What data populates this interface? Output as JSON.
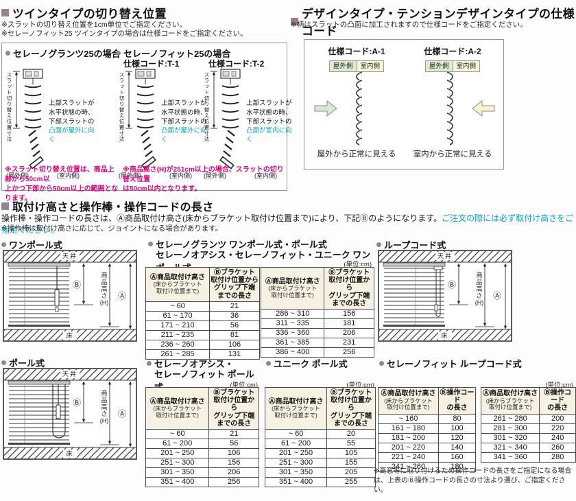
{
  "colors": {
    "accent_mauve": "#9a8191",
    "note_magenta": "#e6007e",
    "highlight_cyan": "#00a5cc",
    "table_header_bg": "#f6f1e3",
    "outdoor_label_bg": "#dcead0",
    "indoor_label_bg": "#faf6d8",
    "arrow_green": "#d5e9d4",
    "arrow_yellow": "#f8f4cc"
  },
  "twin": {
    "title": "ツインタイプの切り替え位置",
    "note1": "※スラットの切り替え位置を1cm単位でご指定ください。",
    "note2": "※セレーノフィット25 ツインタイプの場合は仕様コードをご指定ください。",
    "granz_title": "セレーノグランツ25の場合",
    "fit_title": "セレーノフィット25の場合",
    "t1_code": "仕様コード:T-1",
    "t2_code": "仕様コード:T-2",
    "dim_label": "スラット切り替え位置寸法",
    "annotation": "上部スラットが\n水平状態の時、\n下部スラットの",
    "highlight_out": "凸面が屋外に向く",
    "highlight_in": "凸面が室内に向く",
    "outdoor": "(屋外側)",
    "indoor": "(室内側)",
    "granz_note": "※スラット切り替え位置は、商品上部から50cm以\n上かつ下部から50cm以上の範囲となります。",
    "fit_note": "※商品高さ(H)が251cm以上の場合、スラットの切り替え位置\nは50cm以内となります。"
  },
  "design": {
    "title": "デザインタイプ・テンションデザインタイプの仕様コード",
    "note": "※柄はスラットの凸面に加工されますので仕様コードをご指定ください。",
    "a1_code": "仕様コード:A-1",
    "a2_code": "仕様コード:A-2",
    "outdoor": "屋外側",
    "indoor": "室内側",
    "a1_caption": "屋外から正常に見える",
    "a2_caption": "室内から正常に見える"
  },
  "height_section": {
    "title": "取付け高さと操作棒・操作コードの長さ",
    "desc": "操作棒・操作コードの長さは、Ⓐ商品取付け高さ(床からブラケット取付け位置まで)により、下記Ⓑのようになります。",
    "desc_em": "ご注文の際には必ず取付け高さをご指定ください。",
    "note": "※操作棒は取付け高さに応じて、ジョイントになる場合があります。"
  },
  "diagram_labels": {
    "ceiling": "天井",
    "floor": "床",
    "b": "Ⓑ",
    "a": "Ⓐ",
    "h": "商\n品\n高\nさ\n(H)"
  },
  "d1_title": "ワンポール式",
  "d2_title": "ループコード式",
  "d3_title": "ポール式",
  "tables": {
    "unit": "(単位:cm)",
    "header_a": "Ⓐ商品取付け高さ",
    "header_a_sub": "(床からブラケット\n取付け位置まで)",
    "header_b": "Ⓑブラケット\n取付け位置から\nグリップ下端\nまでの長さ",
    "header_b_cord": "Ⓑ操作コード\nの長さ",
    "granz": {
      "title1": "セレーノグランツ ワンポール式・ポール式",
      "title2": "セレーノオアシス・セレーノフィット・ユニーク ワンポール式",
      "left_rows": [
        [
          "~ 60",
          "21"
        ],
        [
          "61 ~ 170",
          "36"
        ],
        [
          "171 ~ 210",
          "56"
        ],
        [
          "211 ~ 235",
          "81"
        ],
        [
          "236 ~ 260",
          "106"
        ],
        [
          "261 ~ 285",
          "131"
        ]
      ],
      "right_rows": [
        [
          "286 ~ 310",
          "156"
        ],
        [
          "311 ~ 335",
          "181"
        ],
        [
          "336 ~ 360",
          "206"
        ],
        [
          "361 ~ 385",
          "231"
        ],
        [
          "386 ~ 400",
          "256"
        ]
      ]
    },
    "oasis": {
      "title1": "セレーノオアシス・",
      "title2": "セレーノフィット ポール式",
      "rows": [
        [
          "~ 60",
          "21"
        ],
        [
          "61 ~ 200",
          "56"
        ],
        [
          "201 ~ 250",
          "106"
        ],
        [
          "251 ~ 300",
          "156"
        ],
        [
          "301 ~ 350",
          "206"
        ],
        [
          "351 ~ 400",
          "256"
        ]
      ]
    },
    "unique": {
      "title": "ユニーク ポール式",
      "rows": [
        [
          "~ 60",
          "20"
        ],
        [
          "61 ~ 200",
          "55"
        ],
        [
          "201 ~ 250",
          "105"
        ],
        [
          "251 ~ 300",
          "155"
        ],
        [
          "301 ~ 350",
          "205"
        ],
        [
          "351 ~ 400",
          "255"
        ]
      ]
    },
    "fitloop": {
      "title": "セレーノフィット ループコード式",
      "left_rows": [
        [
          "~ 160",
          "80"
        ],
        [
          "161 ~ 180",
          "100"
        ],
        [
          "181 ~ 200",
          "120"
        ],
        [
          "201 ~ 220",
          "140"
        ],
        [
          "221 ~ 240",
          "160"
        ],
        [
          "241 ~ 260",
          "180"
        ]
      ],
      "right_rows": [
        [
          "261 ~ 280",
          "200"
        ],
        [
          "281 ~ 300",
          "220"
        ],
        [
          "301 ~ 320",
          "240"
        ],
        [
          "321 ~ 340",
          "260"
        ],
        [
          "341 ~ 360",
          "280"
        ]
      ],
      "note": "※高窓等に取り付けるため操作コードの長さをご指定になる場合は、上表のⒷ操作コードの長さの寸法より選び、ご指定ください。"
    }
  }
}
